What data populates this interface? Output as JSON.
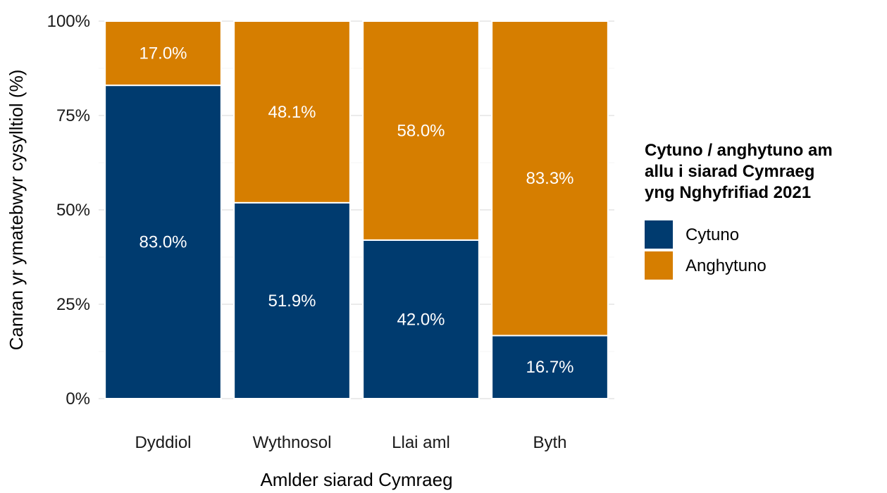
{
  "chart_data": {
    "type": "bar",
    "stacked": true,
    "categories": [
      "Dyddiol",
      "Wythnosol",
      "Llai aml",
      "Byth"
    ],
    "series": [
      {
        "name": "Cytuno",
        "color": "#003b6f",
        "values": [
          83.0,
          51.9,
          42.0,
          16.7
        ],
        "labels": [
          "83.0%",
          "51.9%",
          "42.0%",
          "16.7%"
        ]
      },
      {
        "name": "Anghytuno",
        "color": "#d67e00",
        "values": [
          17.0,
          48.1,
          58.0,
          83.3
        ],
        "labels": [
          "17.0%",
          "48.1%",
          "58.0%",
          "83.3%"
        ]
      }
    ],
    "ylabel": "Canran yr ymatebwyr cysylltiol (%)",
    "xlabel": "Amlder siarad Cymraeg",
    "ylim": [
      0,
      100
    ],
    "y_ticks": [
      {
        "value": 0,
        "label": "0%"
      },
      {
        "value": 25,
        "label": "25%"
      },
      {
        "value": 50,
        "label": "50%"
      },
      {
        "value": 75,
        "label": "75%"
      },
      {
        "value": 100,
        "label": "100%"
      }
    ],
    "legend": {
      "title_lines": [
        "Cytuno / anghytuno am",
        "allu i siarad Cymraeg",
        "yng Nghyfrifiad 2021"
      ],
      "position": "right"
    },
    "grid": true
  }
}
